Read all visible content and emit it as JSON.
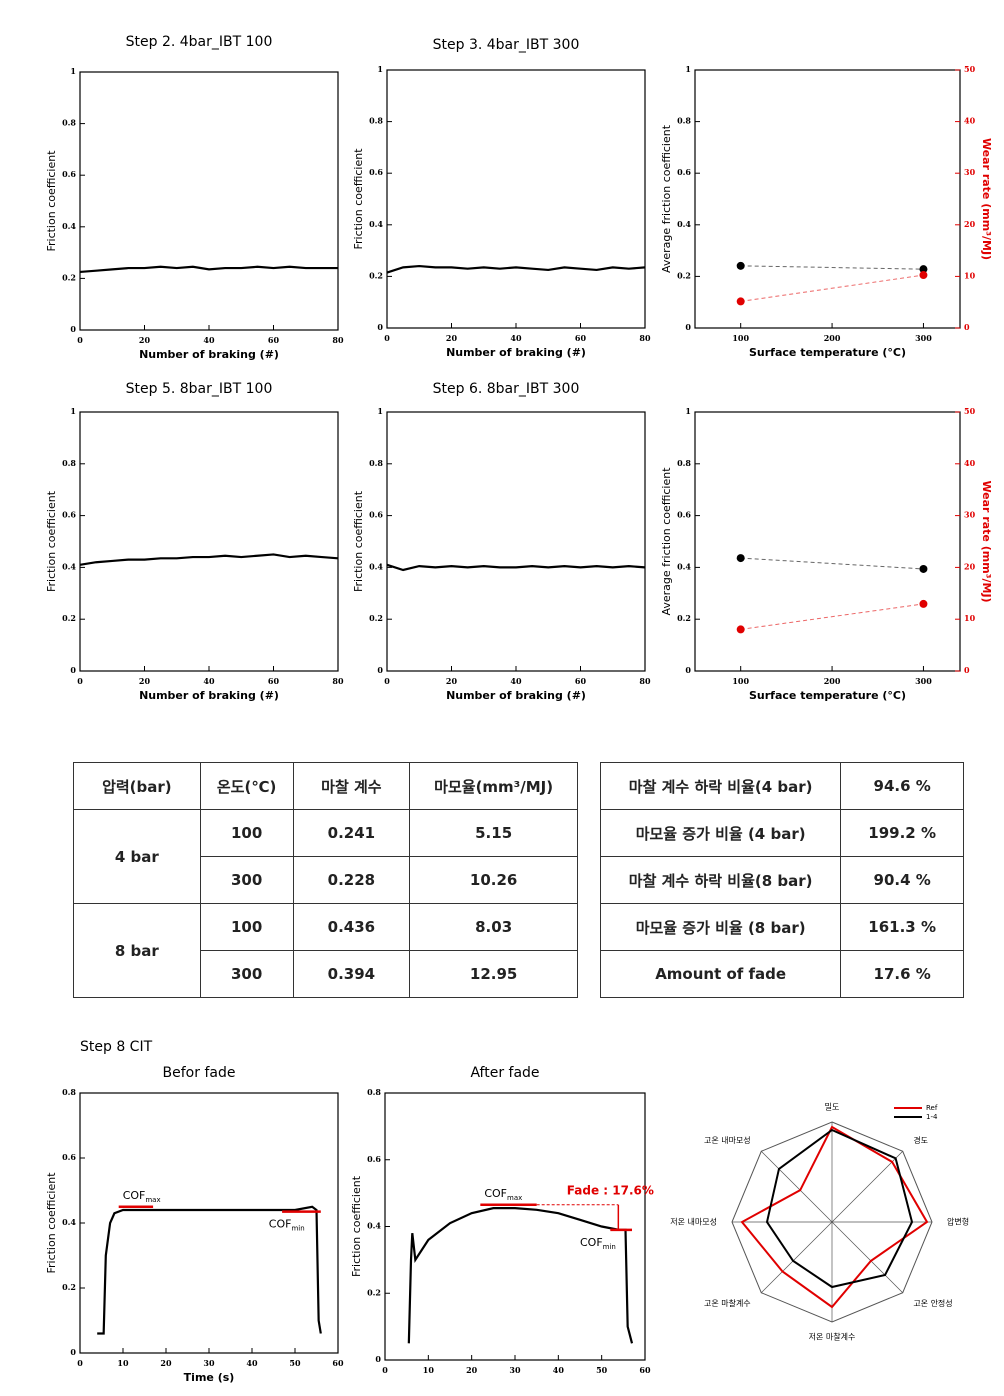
{
  "chart_data": [
    {
      "type": "line",
      "title": "Step 2. 4bar_IBT 100",
      "xlabel": "Number of braking (#)",
      "ylabel": "Friction coefficient",
      "color": "#000000",
      "x": [
        0,
        5,
        10,
        15,
        20,
        25,
        30,
        35,
        40,
        45,
        50,
        55,
        60,
        65,
        70,
        75,
        80
      ],
      "values": [
        0.225,
        0.23,
        0.235,
        0.24,
        0.24,
        0.245,
        0.24,
        0.245,
        0.235,
        0.24,
        0.24,
        0.245,
        0.24,
        0.245,
        0.24,
        0.24,
        0.24
      ],
      "xlim": [
        0,
        80
      ],
      "xticks": [
        0,
        20,
        40,
        60,
        80
      ],
      "ylim": [
        0,
        1
      ],
      "yticks": [
        0,
        0.2,
        0.4,
        0.6,
        0.8,
        1
      ]
    },
    {
      "type": "line",
      "title": "Step 3. 4bar_IBT 300",
      "xlabel": "Number of braking (#)",
      "ylabel": "Friction coefficient",
      "color": "#000000",
      "x": [
        0,
        5,
        10,
        15,
        20,
        25,
        30,
        35,
        40,
        45,
        50,
        55,
        60,
        65,
        70,
        75,
        80
      ],
      "values": [
        0.215,
        0.235,
        0.24,
        0.235,
        0.235,
        0.23,
        0.235,
        0.23,
        0.235,
        0.23,
        0.225,
        0.235,
        0.23,
        0.225,
        0.235,
        0.23,
        0.235
      ],
      "xlim": [
        0,
        80
      ],
      "xticks": [
        0,
        20,
        40,
        60,
        80
      ],
      "ylim": [
        0,
        1
      ],
      "yticks": [
        0,
        0.2,
        0.4,
        0.6,
        0.8,
        1
      ]
    },
    {
      "type": "scatter",
      "xlabel": "Surface temperature (°C)",
      "ylabel": "Average friction coefficient",
      "y2label": "Wear rate (mm³/MJ)",
      "x": [
        100,
        300
      ],
      "series": [
        {
          "color": "#000000",
          "values": [
            0.241,
            0.228
          ]
        },
        {
          "color": "#e00000",
          "values": [
            5.15,
            10.26
          ],
          "axis": "y2"
        }
      ],
      "xlim": [
        50,
        340
      ],
      "xticks": [
        100,
        200,
        300
      ],
      "ylim": [
        0,
        1
      ],
      "yticks": [
        0,
        0.2,
        0.4,
        0.6,
        0.8,
        1
      ],
      "y2lim": [
        0,
        50
      ],
      "y2ticks": [
        0,
        10,
        20,
        30,
        40,
        50
      ]
    },
    {
      "type": "line",
      "title": "Step 5. 8bar_IBT 100",
      "xlabel": "Number of braking (#)",
      "ylabel": "Friction coefficient",
      "color": "#000000",
      "x": [
        0,
        5,
        10,
        15,
        20,
        25,
        30,
        35,
        40,
        45,
        50,
        55,
        60,
        65,
        70,
        75,
        80
      ],
      "values": [
        0.41,
        0.42,
        0.425,
        0.43,
        0.43,
        0.435,
        0.435,
        0.44,
        0.44,
        0.445,
        0.44,
        0.445,
        0.45,
        0.44,
        0.445,
        0.44,
        0.435
      ],
      "xlim": [
        0,
        80
      ],
      "xticks": [
        0,
        20,
        40,
        60,
        80
      ],
      "ylim": [
        0,
        1
      ],
      "yticks": [
        0,
        0.2,
        0.4,
        0.6,
        0.8,
        1
      ]
    },
    {
      "type": "line",
      "title": "Step 6. 8bar_IBT 300",
      "xlabel": "Number of braking (#)",
      "ylabel": "Friction coefficient",
      "color": "#000000",
      "x": [
        0,
        5,
        10,
        15,
        20,
        25,
        30,
        35,
        40,
        45,
        50,
        55,
        60,
        65,
        70,
        75,
        80
      ],
      "values": [
        0.41,
        0.39,
        0.405,
        0.4,
        0.405,
        0.4,
        0.405,
        0.4,
        0.4,
        0.405,
        0.4,
        0.405,
        0.4,
        0.405,
        0.4,
        0.405,
        0.4
      ],
      "xlim": [
        0,
        80
      ],
      "xticks": [
        0,
        20,
        40,
        60,
        80
      ],
      "ylim": [
        0,
        1
      ],
      "yticks": [
        0,
        0.2,
        0.4,
        0.6,
        0.8,
        1
      ]
    },
    {
      "type": "scatter",
      "xlabel": "Surface temperature (°C)",
      "ylabel": "Average friction coefficient",
      "y2label": "Wear rate (mm³/MJ)",
      "x": [
        100,
        300
      ],
      "series": [
        {
          "color": "#000000",
          "values": [
            0.436,
            0.394
          ]
        },
        {
          "color": "#e00000",
          "values": [
            8.03,
            12.95
          ],
          "axis": "y2"
        }
      ],
      "xlim": [
        50,
        340
      ],
      "xticks": [
        100,
        200,
        300
      ],
      "ylim": [
        0,
        1
      ],
      "yticks": [
        0,
        0.2,
        0.4,
        0.6,
        0.8,
        1
      ],
      "y2lim": [
        0,
        50
      ],
      "y2ticks": [
        0,
        10,
        20,
        30,
        40,
        50
      ]
    },
    {
      "type": "line",
      "title": "Befor fade",
      "xlabel": "Time (s)",
      "ylabel": "Friction coefficient",
      "color": "#000000",
      "x": [
        4,
        5.5,
        6,
        7,
        8,
        10,
        15,
        20,
        30,
        40,
        50,
        54,
        55,
        55.5,
        56
      ],
      "values": [
        0.06,
        0.06,
        0.3,
        0.4,
        0.43,
        0.44,
        0.44,
        0.44,
        0.44,
        0.44,
        0.44,
        0.45,
        0.44,
        0.1,
        0.06
      ],
      "xlim": [
        0,
        60
      ],
      "xticks": [
        0,
        10,
        20,
        30,
        40,
        50,
        60
      ],
      "ylim": [
        0,
        0.8
      ],
      "yticks": [
        0,
        0.2,
        0.4,
        0.6,
        0.8
      ],
      "reference_lines": [
        {
          "label": "COF",
          "sub": "max",
          "value": 0.45,
          "x": [
            9,
            17
          ],
          "color": "#e00000"
        },
        {
          "label": "COF",
          "sub": "min",
          "value": 0.435,
          "x": [
            47,
            56
          ],
          "color": "#e00000"
        }
      ]
    },
    {
      "type": "line",
      "title": "After fade",
      "ylabel": "Friction coefficient",
      "color": "#000000",
      "x": [
        5.5,
        6,
        6.3,
        7,
        10,
        15,
        20,
        25,
        30,
        35,
        40,
        45,
        50,
        54,
        55.5,
        56,
        57
      ],
      "values": [
        0.05,
        0.3,
        0.38,
        0.3,
        0.36,
        0.41,
        0.44,
        0.455,
        0.455,
        0.45,
        0.44,
        0.42,
        0.4,
        0.39,
        0.39,
        0.1,
        0.05
      ],
      "xlim": [
        0,
        60
      ],
      "xticks": [
        0,
        10,
        20,
        30,
        40,
        50,
        60
      ],
      "ylim": [
        0,
        0.8
      ],
      "yticks": [
        0,
        0.2,
        0.4,
        0.6,
        0.8
      ],
      "reference_lines": [
        {
          "label": "COF",
          "sub": "max",
          "value": 0.465,
          "x": [
            22,
            35
          ],
          "color": "#e00000"
        },
        {
          "label": "COF",
          "sub": "min",
          "value": 0.39,
          "x": [
            52,
            57
          ],
          "color": "#e00000"
        }
      ],
      "annotation": "Fade : 17.6%"
    },
    {
      "type": "radar",
      "axes": [
        "밀도",
        "경도",
        "압변형",
        "고온 안정성",
        "저온 마찰계수",
        "고온 마찰계수",
        "저온 내마모성",
        "고온 내마모성"
      ],
      "rlim": [
        0,
        1
      ],
      "series": [
        {
          "name": "Ref",
          "color": "#e00000",
          "values": [
            0.95,
            0.85,
            0.95,
            0.55,
            0.85,
            0.7,
            0.9,
            0.45
          ]
        },
        {
          "name": "1-4",
          "color": "#000000",
          "values": [
            0.92,
            0.9,
            0.8,
            0.75,
            0.65,
            0.55,
            0.65,
            0.75
          ]
        }
      ]
    }
  ],
  "section_title": "Step 8 CIT",
  "table": {
    "header": [
      "압력(bar)",
      "온도(℃)",
      "마찰 계수",
      "마모율(mm³/MJ)"
    ],
    "groups": [
      {
        "pressure": "4 bar",
        "rows": [
          [
            "100",
            "0.241",
            "5.15"
          ],
          [
            "300",
            "0.228",
            "10.26"
          ]
        ]
      },
      {
        "pressure": "8 bar",
        "rows": [
          [
            "100",
            "0.436",
            "8.03"
          ],
          [
            "300",
            "0.394",
            "12.95"
          ]
        ]
      }
    ]
  },
  "summary_table": {
    "rows": [
      [
        "마찰 계수 하락 비율(4 bar)",
        "94.6 %"
      ],
      [
        "마모율 증가 비율 (4 bar)",
        "199.2 %"
      ],
      [
        "마찰 계수 하락 비율(8 bar)",
        "90.4 %"
      ],
      [
        "마모율 증가 비율 (8 bar)",
        "161.3 %"
      ],
      [
        "Amount of fade",
        "17.6 %"
      ]
    ]
  }
}
